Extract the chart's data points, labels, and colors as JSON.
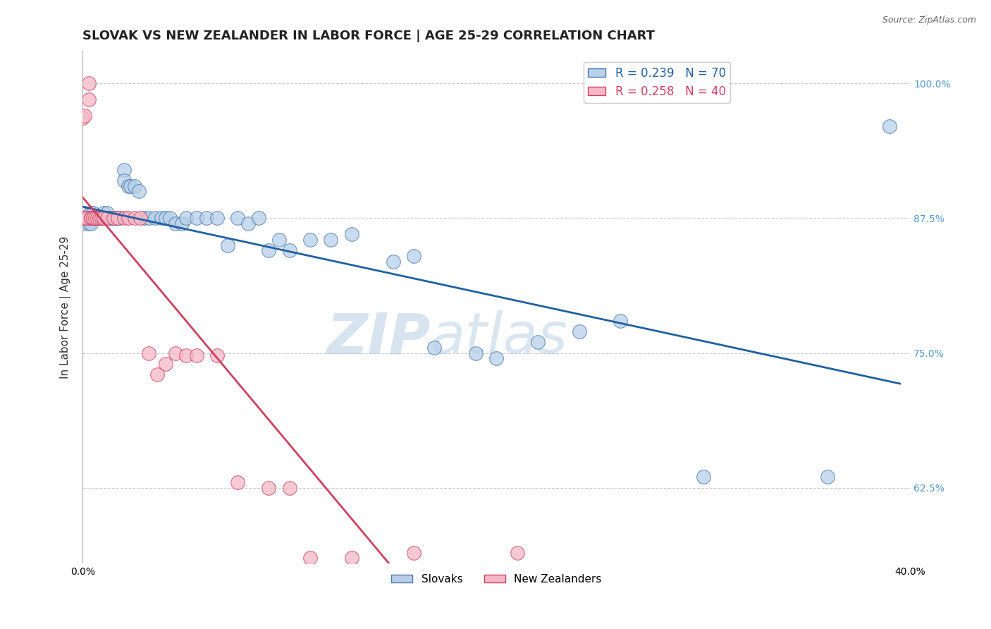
{
  "title": "SLOVAK VS NEW ZEALANDER IN LABOR FORCE | AGE 25-29 CORRELATION CHART",
  "source_text": "Source: ZipAtlas.com",
  "ylabel": "In Labor Force | Age 25-29",
  "xlim": [
    0.0,
    0.4
  ],
  "ylim": [
    0.555,
    1.03
  ],
  "yticks": [
    0.625,
    0.75,
    0.875,
    1.0
  ],
  "ytick_labels": [
    "62.5%",
    "75.0%",
    "87.5%",
    "100.0%"
  ],
  "xticks": [
    0.0,
    0.1,
    0.2,
    0.3,
    0.4
  ],
  "xtick_labels": [
    "0.0%",
    "",
    "",
    "",
    "40.0%"
  ],
  "blue_R": 0.239,
  "blue_N": 70,
  "pink_R": 0.258,
  "pink_N": 40,
  "blue_color": "#b8d0ea",
  "blue_edge_color": "#4878a8",
  "pink_color": "#f5b8c8",
  "pink_edge_color": "#d04060",
  "blue_line_color": "#2060a0",
  "pink_line_color": "#d04060",
  "blue_scatter_x": [
    0.0,
    0.0,
    0.001,
    0.002,
    0.002,
    0.003,
    0.003,
    0.004,
    0.004,
    0.004,
    0.005,
    0.005,
    0.005,
    0.006,
    0.006,
    0.007,
    0.007,
    0.008,
    0.008,
    0.009,
    0.01,
    0.01,
    0.011,
    0.012,
    0.013,
    0.014,
    0.015,
    0.015,
    0.016,
    0.017,
    0.018,
    0.02,
    0.02,
    0.022,
    0.023,
    0.025,
    0.027,
    0.03,
    0.032,
    0.035,
    0.038,
    0.04,
    0.042,
    0.045,
    0.048,
    0.05,
    0.055,
    0.06,
    0.065,
    0.07,
    0.075,
    0.08,
    0.085,
    0.09,
    0.095,
    0.1,
    0.11,
    0.12,
    0.13,
    0.15,
    0.16,
    0.17,
    0.19,
    0.2,
    0.22,
    0.24,
    0.26,
    0.3,
    0.36,
    0.39
  ],
  "blue_scatter_y": [
    0.875,
    0.87,
    0.88,
    0.875,
    0.875,
    0.875,
    0.87,
    0.88,
    0.875,
    0.87,
    0.875,
    0.875,
    0.88,
    0.875,
    0.875,
    0.875,
    0.875,
    0.875,
    0.875,
    0.875,
    0.88,
    0.875,
    0.875,
    0.88,
    0.875,
    0.875,
    0.875,
    0.875,
    0.875,
    0.875,
    0.875,
    0.92,
    0.91,
    0.905,
    0.905,
    0.905,
    0.9,
    0.875,
    0.875,
    0.875,
    0.875,
    0.875,
    0.875,
    0.87,
    0.87,
    0.875,
    0.875,
    0.875,
    0.875,
    0.85,
    0.875,
    0.87,
    0.875,
    0.845,
    0.855,
    0.845,
    0.855,
    0.855,
    0.86,
    0.835,
    0.84,
    0.755,
    0.75,
    0.745,
    0.76,
    0.77,
    0.78,
    0.635,
    0.635,
    0.96
  ],
  "pink_scatter_x": [
    0.0,
    0.0,
    0.001,
    0.001,
    0.002,
    0.002,
    0.003,
    0.003,
    0.004,
    0.004,
    0.004,
    0.005,
    0.005,
    0.006,
    0.007,
    0.008,
    0.009,
    0.01,
    0.01,
    0.012,
    0.015,
    0.017,
    0.02,
    0.022,
    0.025,
    0.028,
    0.032,
    0.036,
    0.04,
    0.045,
    0.05,
    0.055,
    0.065,
    0.075,
    0.09,
    0.1,
    0.11,
    0.13,
    0.16,
    0.21
  ],
  "pink_scatter_y": [
    0.875,
    0.968,
    0.875,
    0.97,
    0.875,
    0.875,
    1.0,
    0.985,
    0.875,
    0.875,
    0.875,
    0.875,
    0.875,
    0.875,
    0.875,
    0.875,
    0.875,
    0.875,
    0.875,
    0.875,
    0.875,
    0.875,
    0.875,
    0.875,
    0.875,
    0.875,
    0.75,
    0.73,
    0.74,
    0.75,
    0.748,
    0.748,
    0.748,
    0.63,
    0.625,
    0.625,
    0.56,
    0.56,
    0.565,
    0.565
  ],
  "watermark_text": "ZIPAtlas",
  "background_color": "#ffffff",
  "grid_color": "#cccccc",
  "title_fontsize": 13,
  "axis_label_fontsize": 11,
  "tick_fontsize": 10,
  "right_tick_color": "#5599cc"
}
